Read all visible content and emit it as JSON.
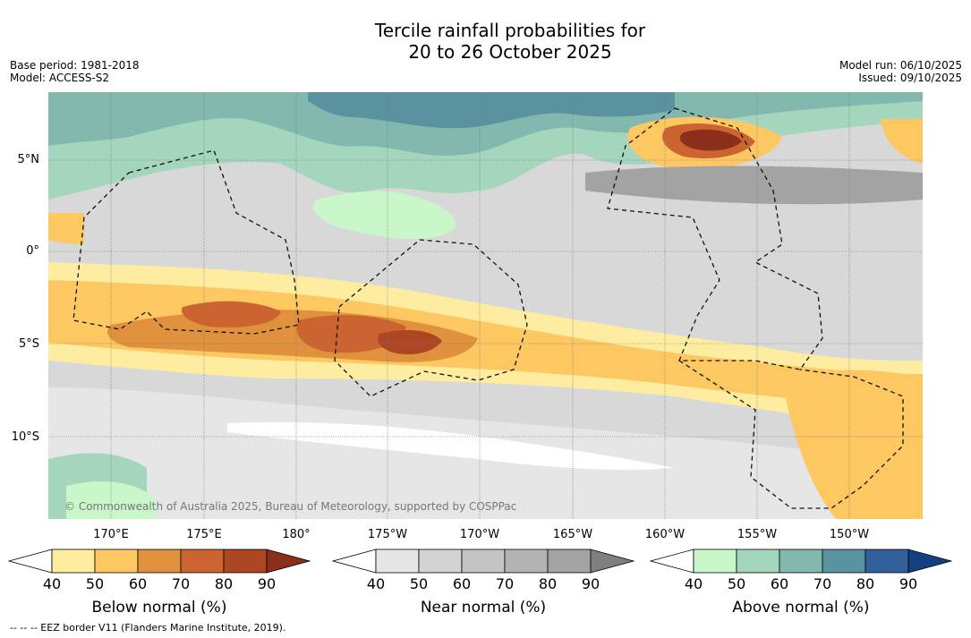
{
  "title": {
    "line1": "Tercile rainfall probabilities for",
    "line2": "20 to 26 October 2025"
  },
  "meta_left": {
    "base_period": "Base period: 1981-2018",
    "model": "Model: ACCESS-S2"
  },
  "meta_right": {
    "model_run": "Model run: 06/10/2025",
    "issued": "Issued: 09/10/2025"
  },
  "map": {
    "lat_labels": [
      "5°N",
      "0°",
      "5°S",
      "10°S"
    ],
    "lon_labels": [
      "170°E",
      "175°E",
      "180°",
      "175°W",
      "170°W",
      "165°W",
      "160°W",
      "155°W",
      "150°W"
    ],
    "copyright": "© Commonwealth of Australia 2025, Bureau of Meteorology, supported by COSPPac"
  },
  "colorbars": [
    {
      "title": "Below normal (%)",
      "ticks": [
        "40",
        "50",
        "60",
        "70",
        "80",
        "90"
      ],
      "colors": [
        "#ffffff",
        "#feeda0",
        "#fdc862",
        "#e0913e",
        "#cc6432",
        "#ad4623",
        "#8c2e1c"
      ]
    },
    {
      "title": "Near normal (%)",
      "ticks": [
        "40",
        "50",
        "60",
        "70",
        "80",
        "90"
      ],
      "colors": [
        "#ffffff",
        "#e6e6e6",
        "#d3d3d3",
        "#c4c4c4",
        "#b3b3b3",
        "#a3a3a3",
        "#7f7f7f"
      ]
    },
    {
      "title": "Above normal (%)",
      "ticks": [
        "40",
        "50",
        "60",
        "70",
        "80",
        "90"
      ],
      "colors": [
        "#ffffff",
        "#c9f7c9",
        "#a3d6bd",
        "#82b8ae",
        "#5b92a0",
        "#32609a",
        "#143f80"
      ]
    }
  ],
  "eez_legend": "--  --  -- EEZ border V11 (Flanders Marine Institute, 2019)."
}
